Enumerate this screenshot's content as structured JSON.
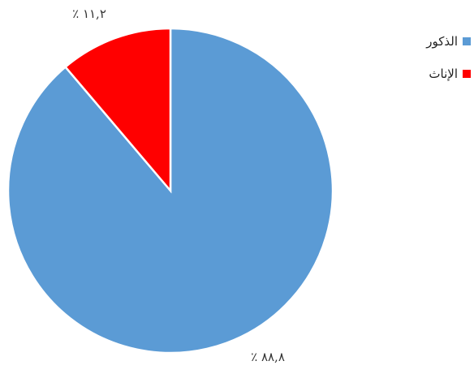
{
  "chart_data": {
    "type": "pie",
    "slices": [
      {
        "label": "الذكور",
        "value": 88.8,
        "display": "٨٨,٨ ٪",
        "color": "#5b9bd5"
      },
      {
        "label": "الإناث",
        "value": 11.2,
        "display": "١١,٢ ٪",
        "color": "#ff0000"
      }
    ],
    "legend": {
      "position": "top-right"
    }
  }
}
